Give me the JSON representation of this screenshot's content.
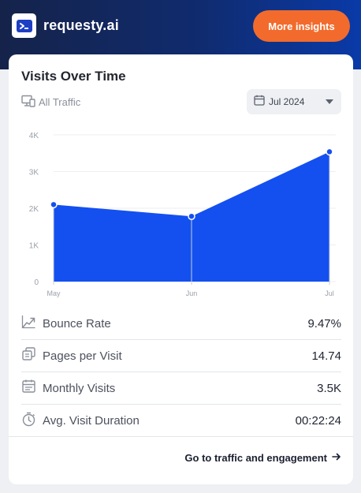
{
  "header": {
    "brand_name": "requesty.ai",
    "insights_button": "More insights"
  },
  "card": {
    "title": "Visits Over Time",
    "traffic_filter": "All Traffic",
    "date_selected": "Jul 2024"
  },
  "chart_data": {
    "type": "area",
    "categories": [
      "May",
      "Jun",
      "Jul"
    ],
    "values": [
      2100,
      1780,
      3540
    ],
    "y_ticks": [
      "0",
      "1K",
      "2K",
      "3K",
      "4K"
    ],
    "ylim": [
      0,
      4000
    ],
    "grid": true,
    "color": "#1450f0"
  },
  "metrics": [
    {
      "icon": "trend-icon",
      "label": "Bounce Rate",
      "value": "9.47%"
    },
    {
      "icon": "pages-icon",
      "label": "Pages per Visit",
      "value": "14.74"
    },
    {
      "icon": "calendar-icon",
      "label": "Monthly Visits",
      "value": "3.5K"
    },
    {
      "icon": "timer-icon",
      "label": "Avg. Visit Duration",
      "value": "00:22:24"
    }
  ],
  "footer": {
    "link": "Go to traffic and engagement"
  },
  "colors": {
    "accent": "#f26b2c",
    "chart_fill": "#1450f0",
    "header_bg": "#102b6e"
  }
}
